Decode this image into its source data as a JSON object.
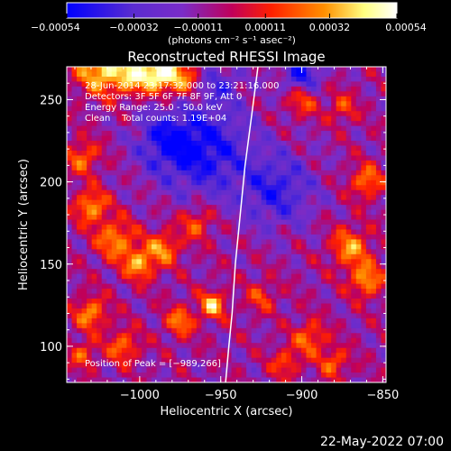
{
  "chart_data": {
    "type": "heatmap",
    "title": "Reconstructed RHESSI Image",
    "xlabel": "Heliocentric X (arcsec)",
    "ylabel": "Heliocentric Y (arcsec)",
    "xlim": [
      -1045,
      -848
    ],
    "ylim": [
      78,
      270
    ],
    "x_ticks": [
      -1000,
      -950,
      -900,
      -850
    ],
    "x_tick_labels": [
      "−1000",
      "−950",
      "−900",
      "−850"
    ],
    "y_ticks": [
      100,
      150,
      200,
      250
    ],
    "y_tick_labels": [
      "100",
      "150",
      "200",
      "250"
    ],
    "colorbar": {
      "ticks": [
        -0.00054,
        -0.00032,
        -0.00011,
        0.00011,
        0.00032,
        0.00054
      ],
      "tick_labels": [
        "−0.00054",
        "−0.00032",
        "−0.00011",
        "0.00011",
        "0.00032",
        "0.00054"
      ],
      "unit_label": "(photons cm⁻² s⁻¹ asec⁻²)",
      "colors": [
        "#0000ff",
        "#7a2cc8",
        "#c0005a",
        "#ff2000",
        "#ff9000",
        "#ffff80",
        "#ffffff"
      ]
    },
    "annotations": [
      "28-Jun-2014 23:17:32.000 to 23:21:16.000",
      "Detectors: 3F 5F 6F 7F 8F 9F, Att 0",
      "Energy Range: 25.0 - 50.0 keV",
      "Clean    Total counts: 1.19E+04"
    ],
    "peak_label": "Position of Peak = [−989,266]",
    "peak": [
      -989,
      266
    ],
    "limb_curve": {
      "points": [
        [
          -927,
          270
        ],
        [
          -931,
          240
        ],
        [
          -935,
          210
        ],
        [
          -938,
          180
        ],
        [
          -941,
          150
        ],
        [
          -943,
          120
        ],
        [
          -945,
          100
        ],
        [
          -947,
          78
        ]
      ],
      "color": "#ffffff"
    },
    "emission_blobs": [
      {
        "x": -1025,
        "y": 268,
        "amp": 1.8,
        "r": 14
      },
      {
        "x": -1005,
        "y": 265,
        "amp": 1.6,
        "r": 12
      },
      {
        "x": -989,
        "y": 266,
        "amp": 2.0,
        "r": 10
      },
      {
        "x": -975,
        "y": 262,
        "amp": 1.4,
        "r": 12
      },
      {
        "x": -1035,
        "y": 215,
        "amp": 1.2,
        "r": 10
      },
      {
        "x": -1030,
        "y": 185,
        "amp": 1.5,
        "r": 10
      },
      {
        "x": -1015,
        "y": 165,
        "amp": 1.4,
        "r": 12
      },
      {
        "x": -1000,
        "y": 150,
        "amp": 1.5,
        "r": 10
      },
      {
        "x": -985,
        "y": 160,
        "amp": 1.3,
        "r": 10
      },
      {
        "x": -965,
        "y": 175,
        "amp": 1.1,
        "r": 10
      },
      {
        "x": -955,
        "y": 125,
        "amp": 1.7,
        "r": 8
      },
      {
        "x": -975,
        "y": 115,
        "amp": 1.3,
        "r": 9
      },
      {
        "x": -1030,
        "y": 120,
        "amp": 1.4,
        "r": 10
      },
      {
        "x": -1010,
        "y": 100,
        "amp": 1.2,
        "r": 10
      },
      {
        "x": -1035,
        "y": 95,
        "amp": 1.1,
        "r": 8
      },
      {
        "x": -900,
        "y": 250,
        "amp": 1.1,
        "r": 10
      },
      {
        "x": -875,
        "y": 245,
        "amp": 0.9,
        "r": 9
      },
      {
        "x": -860,
        "y": 200,
        "amp": 1.3,
        "r": 10
      },
      {
        "x": -870,
        "y": 160,
        "amp": 1.4,
        "r": 12
      },
      {
        "x": -860,
        "y": 140,
        "amp": 1.5,
        "r": 10
      },
      {
        "x": -895,
        "y": 105,
        "amp": 1.2,
        "r": 10
      },
      {
        "x": -910,
        "y": 90,
        "amp": 1.0,
        "r": 9
      },
      {
        "x": -880,
        "y": 90,
        "amp": 1.1,
        "r": 9
      },
      {
        "x": -925,
        "y": 130,
        "amp": 0.9,
        "r": 9
      }
    ],
    "dark_blobs": [
      {
        "x": -960,
        "y": 220,
        "amp": -1.5,
        "r": 28
      },
      {
        "x": -915,
        "y": 195,
        "amp": -1.2,
        "r": 22
      },
      {
        "x": -985,
        "y": 225,
        "amp": -1.0,
        "r": 18
      },
      {
        "x": -900,
        "y": 265,
        "amp": -1.4,
        "r": 12
      },
      {
        "x": -950,
        "y": 260,
        "amp": -0.8,
        "r": 12
      }
    ]
  },
  "footer": {
    "date": "22-May-2022 07:00"
  }
}
